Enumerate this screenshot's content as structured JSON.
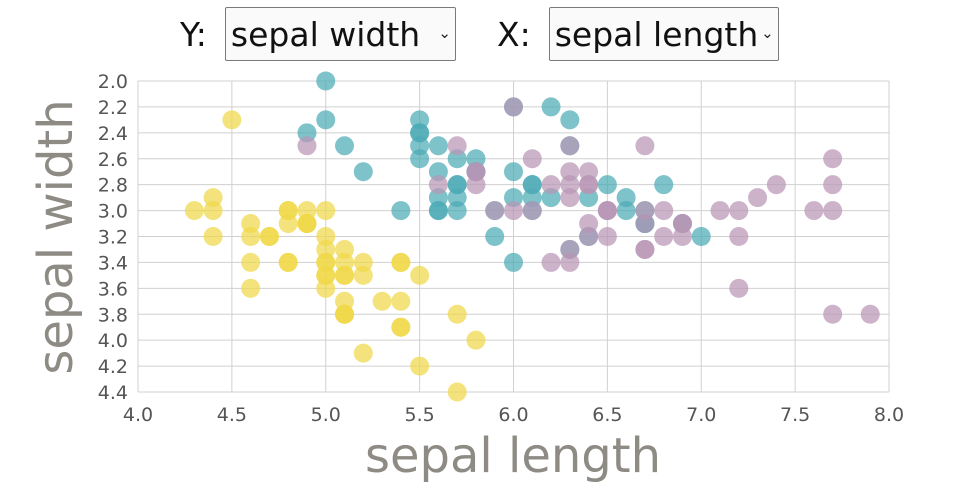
{
  "controls": {
    "y_label": "Y:",
    "y_selected": "sepal width",
    "x_label": "X:",
    "x_selected": "sepal length",
    "chevron": "chevron-down-icon"
  },
  "colors": {
    "setosa": "#f0d84a",
    "versicolor": "#4cabb5",
    "virginica": "#b995b5",
    "grid": "#d0d0d0",
    "axis_title": "#8e8a84"
  },
  "chart_data": {
    "type": "scatter",
    "xlabel": "sepal length",
    "ylabel": "sepal width",
    "xlim": [
      4.0,
      8.0
    ],
    "ylim": [
      2.0,
      4.4
    ],
    "y_inverted": true,
    "grid": true,
    "xticks": [
      "4.0",
      "4.5",
      "5.0",
      "5.5",
      "6.0",
      "6.5",
      "7.0",
      "7.5",
      "8.0"
    ],
    "yticks": [
      "2.0",
      "2.2",
      "2.4",
      "2.6",
      "2.8",
      "3.0",
      "3.2",
      "3.4",
      "3.6",
      "3.8",
      "4.0",
      "4.2",
      "4.4"
    ],
    "series": [
      {
        "color_key": "setosa",
        "points": [
          [
            5.1,
            3.5
          ],
          [
            4.9,
            3.0
          ],
          [
            4.7,
            3.2
          ],
          [
            4.6,
            3.1
          ],
          [
            5.0,
            3.6
          ],
          [
            5.4,
            3.9
          ],
          [
            4.6,
            3.4
          ],
          [
            5.0,
            3.4
          ],
          [
            4.4,
            2.9
          ],
          [
            4.9,
            3.1
          ],
          [
            5.4,
            3.7
          ],
          [
            4.8,
            3.4
          ],
          [
            4.8,
            3.0
          ],
          [
            4.3,
            3.0
          ],
          [
            5.8,
            4.0
          ],
          [
            5.7,
            4.4
          ],
          [
            5.4,
            3.9
          ],
          [
            5.1,
            3.5
          ],
          [
            5.7,
            3.8
          ],
          [
            5.1,
            3.8
          ],
          [
            5.4,
            3.4
          ],
          [
            5.1,
            3.7
          ],
          [
            4.6,
            3.6
          ],
          [
            5.1,
            3.3
          ],
          [
            4.8,
            3.4
          ],
          [
            5.0,
            3.0
          ],
          [
            5.0,
            3.4
          ],
          [
            5.2,
            3.5
          ],
          [
            5.2,
            3.4
          ],
          [
            4.7,
            3.2
          ],
          [
            4.8,
            3.1
          ],
          [
            5.4,
            3.4
          ],
          [
            5.2,
            4.1
          ],
          [
            5.5,
            4.2
          ],
          [
            4.9,
            3.1
          ],
          [
            5.0,
            3.2
          ],
          [
            5.5,
            3.5
          ],
          [
            4.9,
            3.1
          ],
          [
            4.4,
            3.0
          ],
          [
            5.1,
            3.4
          ],
          [
            5.0,
            3.5
          ],
          [
            4.5,
            2.3
          ],
          [
            4.4,
            3.2
          ],
          [
            5.0,
            3.5
          ],
          [
            5.1,
            3.8
          ],
          [
            4.8,
            3.0
          ],
          [
            5.1,
            3.8
          ],
          [
            4.6,
            3.2
          ],
          [
            5.3,
            3.7
          ],
          [
            5.0,
            3.3
          ]
        ]
      },
      {
        "color_key": "versicolor",
        "points": [
          [
            7.0,
            3.2
          ],
          [
            6.4,
            3.2
          ],
          [
            6.9,
            3.1
          ],
          [
            5.5,
            2.3
          ],
          [
            6.5,
            2.8
          ],
          [
            5.7,
            2.8
          ],
          [
            6.3,
            3.3
          ],
          [
            4.9,
            2.4
          ],
          [
            6.6,
            2.9
          ],
          [
            5.2,
            2.7
          ],
          [
            5.0,
            2.0
          ],
          [
            5.9,
            3.0
          ],
          [
            6.0,
            2.2
          ],
          [
            6.1,
            2.9
          ],
          [
            5.6,
            2.9
          ],
          [
            6.7,
            3.1
          ],
          [
            5.6,
            3.0
          ],
          [
            5.8,
            2.7
          ],
          [
            6.2,
            2.2
          ],
          [
            5.6,
            2.5
          ],
          [
            5.9,
            3.2
          ],
          [
            6.1,
            2.8
          ],
          [
            6.3,
            2.5
          ],
          [
            6.1,
            2.8
          ],
          [
            6.4,
            2.9
          ],
          [
            6.6,
            3.0
          ],
          [
            6.8,
            2.8
          ],
          [
            6.7,
            3.0
          ],
          [
            6.0,
            2.9
          ],
          [
            5.7,
            2.6
          ],
          [
            5.5,
            2.4
          ],
          [
            5.5,
            2.4
          ],
          [
            5.8,
            2.7
          ],
          [
            6.0,
            2.7
          ],
          [
            5.4,
            3.0
          ],
          [
            6.0,
            3.4
          ],
          [
            6.7,
            3.1
          ],
          [
            6.3,
            2.3
          ],
          [
            5.6,
            3.0
          ],
          [
            5.5,
            2.5
          ],
          [
            5.5,
            2.6
          ],
          [
            6.1,
            3.0
          ],
          [
            5.8,
            2.6
          ],
          [
            5.0,
            2.3
          ],
          [
            5.6,
            2.7
          ],
          [
            5.7,
            3.0
          ],
          [
            5.7,
            2.9
          ],
          [
            6.2,
            2.9
          ],
          [
            5.1,
            2.5
          ],
          [
            5.7,
            2.8
          ]
        ]
      },
      {
        "color_key": "virginica",
        "points": [
          [
            6.3,
            3.3
          ],
          [
            5.8,
            2.7
          ],
          [
            7.1,
            3.0
          ],
          [
            6.3,
            2.9
          ],
          [
            6.5,
            3.0
          ],
          [
            7.6,
            3.0
          ],
          [
            4.9,
            2.5
          ],
          [
            7.3,
            2.9
          ],
          [
            6.7,
            2.5
          ],
          [
            7.2,
            3.6
          ],
          [
            6.5,
            3.2
          ],
          [
            6.4,
            2.7
          ],
          [
            6.8,
            3.0
          ],
          [
            5.7,
            2.5
          ],
          [
            5.8,
            2.8
          ],
          [
            6.4,
            3.2
          ],
          [
            6.5,
            3.0
          ],
          [
            7.7,
            3.8
          ],
          [
            7.7,
            2.6
          ],
          [
            6.0,
            2.2
          ],
          [
            6.9,
            3.2
          ],
          [
            5.6,
            2.8
          ],
          [
            7.7,
            2.8
          ],
          [
            6.3,
            2.7
          ],
          [
            6.7,
            3.3
          ],
          [
            7.2,
            3.2
          ],
          [
            6.2,
            2.8
          ],
          [
            6.1,
            3.0
          ],
          [
            6.4,
            2.8
          ],
          [
            7.2,
            3.0
          ],
          [
            7.4,
            2.8
          ],
          [
            7.9,
            3.8
          ],
          [
            6.4,
            2.8
          ],
          [
            6.3,
            2.8
          ],
          [
            6.1,
            2.6
          ],
          [
            7.7,
            3.0
          ],
          [
            6.3,
            3.4
          ],
          [
            6.4,
            3.1
          ],
          [
            6.0,
            3.0
          ],
          [
            6.9,
            3.1
          ],
          [
            6.7,
            3.1
          ],
          [
            6.9,
            3.1
          ],
          [
            5.8,
            2.7
          ],
          [
            6.8,
            3.2
          ],
          [
            6.7,
            3.3
          ],
          [
            6.7,
            3.0
          ],
          [
            6.3,
            2.5
          ],
          [
            6.5,
            3.0
          ],
          [
            6.2,
            3.4
          ],
          [
            5.9,
            3.0
          ]
        ]
      }
    ]
  }
}
